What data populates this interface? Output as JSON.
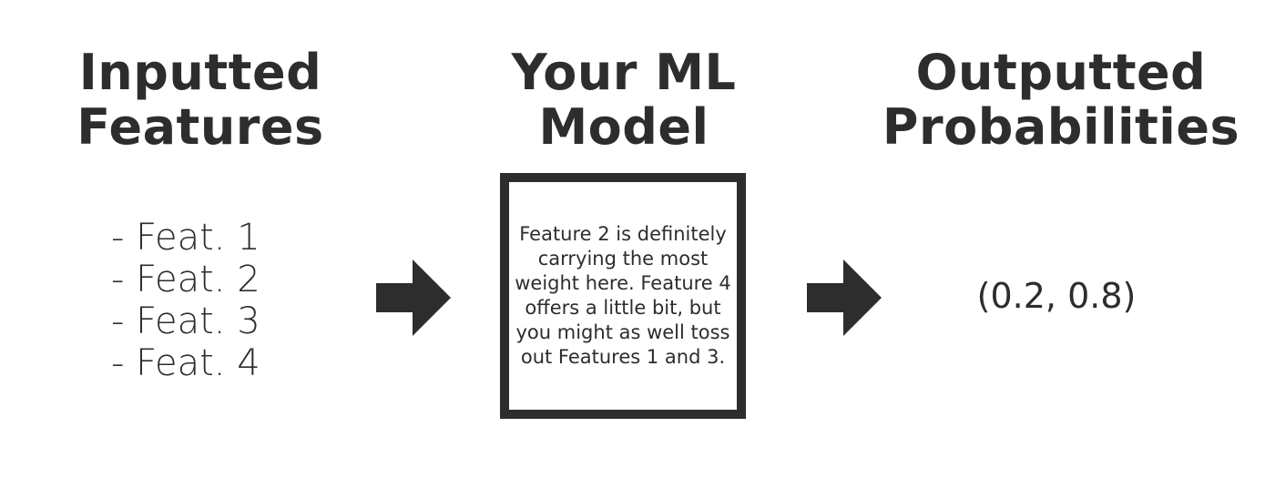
{
  "inputs": {
    "title_line1": "Inputted",
    "title_line2": "Features",
    "features": [
      "- Feat. 1",
      "- Feat. 2",
      "- Feat. 3",
      "- Feat. 4"
    ]
  },
  "model": {
    "title_line1": "Your ML",
    "title_line2": "Model",
    "description": "Feature 2 is definitely carrying the most weight here. Feature 4 offers a little bit, but you might as well toss out Features 1 and 3."
  },
  "outputs": {
    "title_line1": "Outputted",
    "title_line2": "Probabilities",
    "value": "(0.2, 0.8)"
  },
  "colors": {
    "ink": "#2d2d2d",
    "background": "#ffffff"
  },
  "icons": {
    "flow_arrow": "right-arrow-icon"
  }
}
